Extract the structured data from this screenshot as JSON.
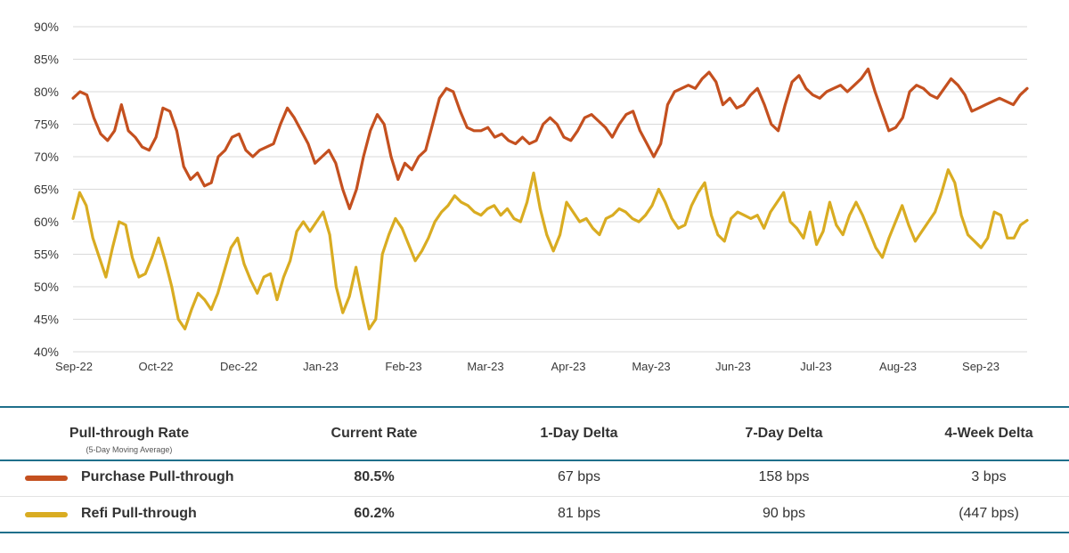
{
  "chart_data": {
    "type": "line",
    "y_ticks": [
      "90%",
      "85%",
      "80%",
      "75%",
      "70%",
      "65%",
      "60%",
      "55%",
      "50%",
      "45%",
      "40%"
    ],
    "ylim": [
      40,
      90
    ],
    "x_ticks": [
      "Sep-22",
      "Oct-22",
      "Dec-22",
      "Jan-23",
      "Feb-23",
      "Mar-23",
      "Apr-23",
      "May-23",
      "Jun-23",
      "Jul-23",
      "Aug-23",
      "Sep-23"
    ],
    "grid": true,
    "series": [
      {
        "name": "Purchase Pull-through",
        "color": "#c4501f",
        "values": [
          79.0,
          80.0,
          79.5,
          76.0,
          73.5,
          72.5,
          74.0,
          78.0,
          74.0,
          73.0,
          71.5,
          71.0,
          73.0,
          77.5,
          77.0,
          74.0,
          68.5,
          66.5,
          67.5,
          65.5,
          66.0,
          70.0,
          71.0,
          73.0,
          73.5,
          71.0,
          70.0,
          71.0,
          71.5,
          72.0,
          75.0,
          77.5,
          76.0,
          74.0,
          72.0,
          69.0,
          70.0,
          71.0,
          69.0,
          65.0,
          62.0,
          65.0,
          70.0,
          74.0,
          76.5,
          75.0,
          70.0,
          66.5,
          69.0,
          68.0,
          70.0,
          71.0,
          75.0,
          79.0,
          80.5,
          80.0,
          77.0,
          74.5,
          74.0,
          74.0,
          74.5,
          73.0,
          73.5,
          72.5,
          72.0,
          73.0,
          72.0,
          72.5,
          75.0,
          76.0,
          75.0,
          73.0,
          72.5,
          74.0,
          76.0,
          76.5,
          75.5,
          74.5,
          73.0,
          75.0,
          76.5,
          77.0,
          74.0,
          72.0,
          70.0,
          72.0,
          78.0,
          80.0,
          80.5,
          81.0,
          80.5,
          82.0,
          83.0,
          81.5,
          78.0,
          79.0,
          77.5,
          78.0,
          79.5,
          80.5,
          78.0,
          75.0,
          74.0,
          78.0,
          81.5,
          82.5,
          80.5,
          79.5,
          79.0,
          80.0,
          80.5,
          81.0,
          80.0,
          81.0,
          82.0,
          83.5,
          80.0,
          77.0,
          74.0,
          74.5,
          76.0,
          80.0,
          81.0,
          80.5,
          79.5,
          79.0,
          80.5,
          82.0,
          81.0,
          79.5,
          77.0,
          77.5,
          78.0,
          78.5,
          79.0,
          78.5,
          78.0,
          79.5,
          80.5
        ]
      },
      {
        "name": "Refi Pull-through",
        "color": "#d9ac22",
        "values": [
          60.5,
          64.5,
          62.5,
          57.5,
          54.5,
          51.5,
          56.0,
          60.0,
          59.5,
          54.5,
          51.5,
          52.0,
          54.5,
          57.5,
          54.0,
          50.0,
          45.0,
          43.5,
          46.5,
          49.0,
          48.0,
          46.5,
          49.0,
          52.5,
          56.0,
          57.5,
          53.5,
          51.0,
          49.0,
          51.5,
          52.0,
          48.0,
          51.5,
          54.0,
          58.5,
          60.0,
          58.5,
          60.0,
          61.5,
          58.0,
          50.0,
          46.0,
          48.5,
          53.0,
          48.0,
          43.5,
          45.0,
          55.0,
          58.0,
          60.5,
          59.0,
          56.5,
          54.0,
          55.5,
          57.5,
          60.0,
          61.5,
          62.5,
          64.0,
          63.0,
          62.5,
          61.5,
          61.0,
          62.0,
          62.5,
          61.0,
          62.0,
          60.5,
          60.0,
          63.0,
          67.5,
          62.0,
          58.0,
          55.5,
          58.0,
          63.0,
          61.5,
          60.0,
          60.5,
          59.0,
          58.0,
          60.5,
          61.0,
          62.0,
          61.5,
          60.5,
          60.0,
          61.0,
          62.5,
          65.0,
          63.0,
          60.5,
          59.0,
          59.5,
          62.5,
          64.5,
          66.0,
          61.0,
          58.0,
          57.0,
          60.5,
          61.5,
          61.0,
          60.5,
          61.0,
          59.0,
          61.5,
          63.0,
          64.5,
          60.0,
          59.0,
          57.5,
          61.5,
          56.5,
          58.5,
          63.0,
          59.5,
          58.0,
          61.0,
          63.0,
          61.0,
          58.5,
          56.0,
          54.5,
          57.5,
          60.0,
          62.5,
          59.5,
          57.0,
          58.5,
          60.0,
          61.5,
          64.5,
          68.0,
          66.0,
          61.0,
          58.0,
          57.0,
          56.0,
          57.5,
          61.5,
          61.0,
          57.5,
          57.5,
          59.5,
          60.2
        ]
      }
    ]
  },
  "table": {
    "headers": {
      "label": "Pull-through Rate",
      "label_sub": "(5-Day Moving Average)",
      "current": "Current Rate",
      "d1": "1-Day Delta",
      "d7": "7-Day Delta",
      "w4": "4-Week Delta"
    },
    "rows": [
      {
        "name": "Purchase Pull-through",
        "color": "#c4501f",
        "current": "80.5%",
        "d1": "67 bps",
        "d7": "158 bps",
        "w4": "3 bps"
      },
      {
        "name": "Refi Pull-through",
        "color": "#d9ac22",
        "current": "60.2%",
        "d1": "81 bps",
        "d7": "90 bps",
        "w4": "(447 bps)"
      }
    ]
  }
}
